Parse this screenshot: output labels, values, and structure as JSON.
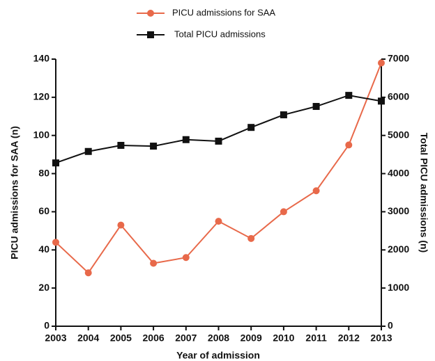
{
  "chart_data": {
    "type": "line",
    "x_label": "Year of admission",
    "y_label": "PICU admissions for SAA (n)",
    "y2_label": "Total PICU admissions (n)",
    "x": [
      2003,
      2004,
      2005,
      2006,
      2007,
      2008,
      2009,
      2010,
      2011,
      2012,
      2013
    ],
    "xlim": [
      2003,
      2013
    ],
    "xticks": [
      2003,
      2004,
      2005,
      2006,
      2007,
      2008,
      2009,
      2010,
      2011,
      2012,
      2013
    ],
    "ylim": [
      0,
      140
    ],
    "yticks": [
      0,
      20,
      40,
      60,
      80,
      100,
      120,
      140
    ],
    "y2lim": [
      0,
      7000
    ],
    "y2ticks": [
      0,
      1000,
      2000,
      3000,
      4000,
      5000,
      6000,
      7000
    ],
    "legend": "top",
    "series": [
      {
        "name": "PICU admissions for SAA",
        "color": "#e8694a",
        "marker": "circle",
        "values": [
          44,
          28,
          53,
          33,
          36,
          55,
          46,
          60,
          71,
          95,
          138
        ]
      },
      {
        "name": "Total PICU admissions",
        "color": "#111111",
        "marker": "square",
        "axis": "y2",
        "values": [
          4280,
          4580,
          4740,
          4720,
          4890,
          4850,
          5210,
          5540,
          5760,
          6050,
          5900
        ]
      }
    ]
  }
}
